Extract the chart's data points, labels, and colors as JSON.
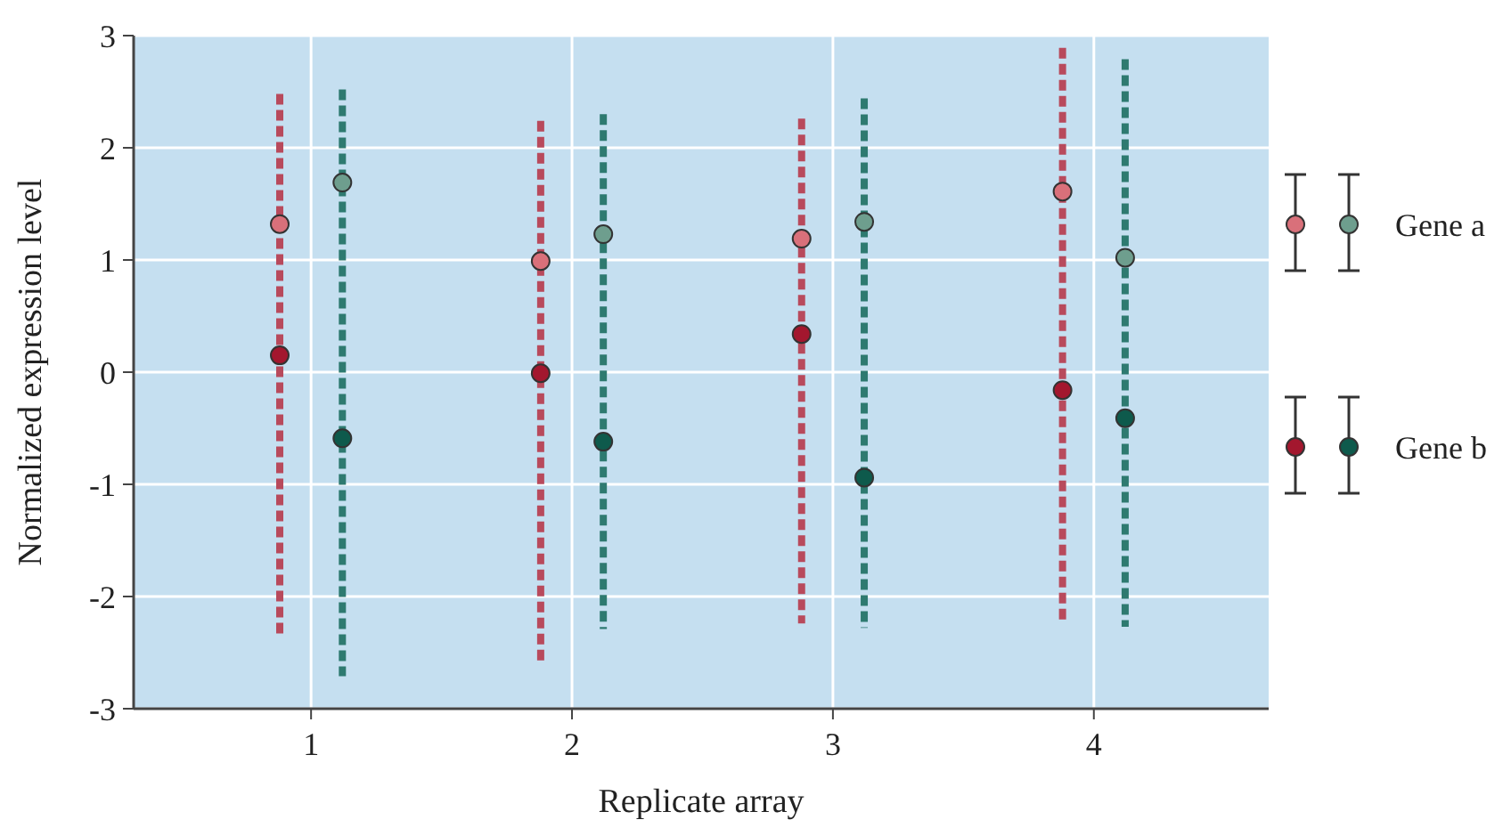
{
  "chart_data": {
    "type": "scatter",
    "xlabel": "Replicate array",
    "ylabel": "Normalized expression level",
    "xlim": [
      0.32,
      4.67
    ],
    "xticks": [
      1,
      2,
      3,
      4
    ],
    "ylim": [
      -3,
      3
    ],
    "yticks": [
      -3,
      -2,
      -1,
      0,
      1,
      2,
      3
    ],
    "grid": true,
    "legend": "right",
    "marker": "circle",
    "series": [
      {
        "type": "line",
        "line_style": "dashed",
        "marker": "none",
        "color": "#b84a5c",
        "x": [
          0.88,
          0.88
        ],
        "values": [
          2.48,
          -2.35
        ]
      },
      {
        "type": "line",
        "line_style": "dashed",
        "marker": "none",
        "color": "#b84a5c",
        "x": [
          1.88,
          1.88
        ],
        "values": [
          2.24,
          -2.59
        ]
      },
      {
        "type": "line",
        "line_style": "dashed",
        "marker": "none",
        "color": "#b84a5c",
        "x": [
          2.88,
          2.88
        ],
        "values": [
          2.26,
          -2.24
        ]
      },
      {
        "type": "line",
        "line_style": "dashed",
        "marker": "none",
        "color": "#b84a5c",
        "x": [
          3.88,
          3.88
        ],
        "values": [
          2.89,
          -2.21
        ]
      },
      {
        "type": "line",
        "line_style": "dashed",
        "marker": "none",
        "color": "#2e7a70",
        "x": [
          1.12,
          1.12
        ],
        "values": [
          2.52,
          -2.71
        ]
      },
      {
        "type": "line",
        "line_style": "dashed",
        "marker": "none",
        "color": "#2e7a70",
        "x": [
          2.12,
          2.12
        ],
        "values": [
          2.3,
          -2.29
        ]
      },
      {
        "type": "line",
        "line_style": "dashed",
        "marker": "none",
        "color": "#2e7a70",
        "x": [
          3.12,
          3.12
        ],
        "values": [
          2.44,
          -2.28
        ]
      },
      {
        "type": "line",
        "line_style": "dashed",
        "marker": "none",
        "color": "#2e7a70",
        "x": [
          4.12,
          4.12
        ],
        "values": [
          2.79,
          -2.27
        ]
      },
      {
        "color": "#d9707a",
        "x": [
          0.88,
          1.88,
          2.88,
          3.88
        ],
        "values": [
          1.32,
          0.99,
          1.19,
          1.61
        ]
      },
      {
        "name": "Gene a",
        "color": "#6e9e8e",
        "x": [
          1.12,
          2.12,
          3.12,
          4.12
        ],
        "values": [
          1.69,
          1.23,
          1.34,
          1.02
        ]
      },
      {
        "color": "#a3172e",
        "x": [
          0.88,
          1.88,
          2.88,
          3.88
        ],
        "values": [
          0.15,
          -0.01,
          0.34,
          -0.16
        ]
      },
      {
        "name": "Gene b",
        "color": "#0e5a4c",
        "x": [
          1.12,
          2.12,
          3.12,
          4.12
        ],
        "values": [
          -0.59,
          -0.62,
          -0.94,
          -0.41
        ]
      }
    ]
  }
}
